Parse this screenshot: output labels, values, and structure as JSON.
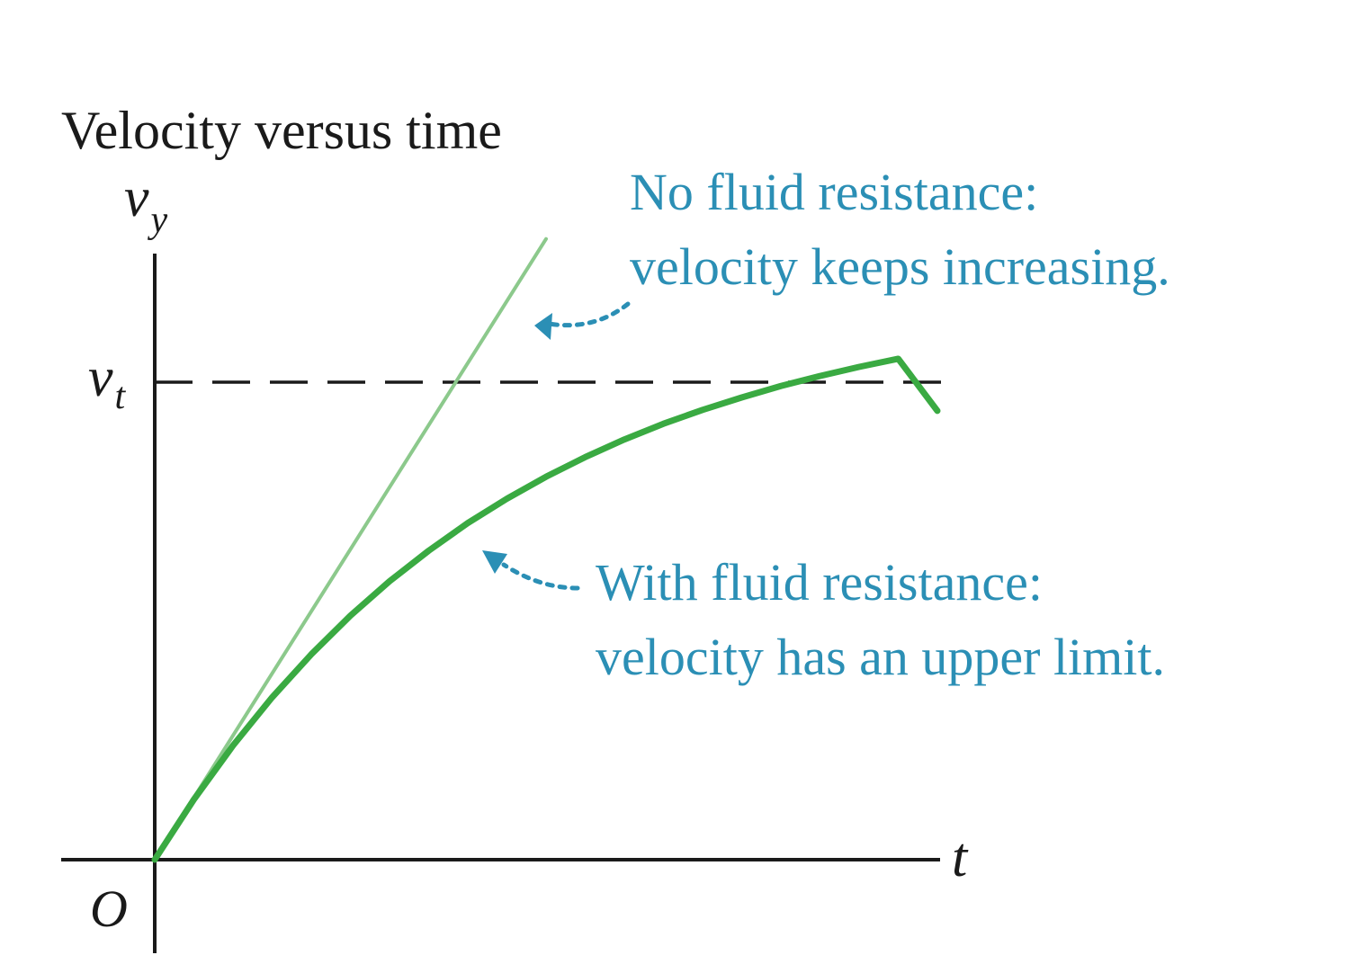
{
  "chart_data": {
    "type": "line",
    "title": "Velocity versus time",
    "y_axis": {
      "symbol": "v",
      "subscript": "y"
    },
    "x_axis": {
      "symbol": "t"
    },
    "origin_label": "O",
    "terminal_velocity": {
      "symbol": "v",
      "subscript": "t",
      "value": 1.0
    },
    "xlim": [
      0,
      10
    ],
    "ylim": [
      0,
      1.6
    ],
    "grid": false,
    "legend": "none",
    "series": [
      {
        "key": "no_resistance",
        "color": "#8cc98c",
        "x": [
          0,
          5
        ],
        "y": [
          0,
          1.3
        ]
      },
      {
        "key": "with_resistance",
        "color": "#3aaa42",
        "x": [
          0,
          0.5,
          1,
          1.5,
          2,
          2.5,
          3,
          3.5,
          4,
          4.5,
          5,
          5.5,
          6,
          6.5,
          7,
          7.5,
          8,
          8.5,
          9,
          9.5,
          10
        ],
        "y": [
          0,
          0.126,
          0.239,
          0.34,
          0.43,
          0.511,
          0.583,
          0.647,
          0.705,
          0.756,
          0.802,
          0.843,
          0.88,
          0.913,
          0.942,
          0.968,
          0.992,
          1.013,
          1.032,
          1.049,
          0.94
        ]
      }
    ],
    "annotations": [
      {
        "target": "no_resistance",
        "color": "#2b8fb5",
        "lines": [
          "No fluid resistance:",
          "velocity keeps increasing."
        ]
      },
      {
        "target": "with_resistance",
        "color": "#2b8fb5",
        "lines": [
          "With fluid resistance:",
          "velocity has an upper limit."
        ]
      }
    ]
  }
}
